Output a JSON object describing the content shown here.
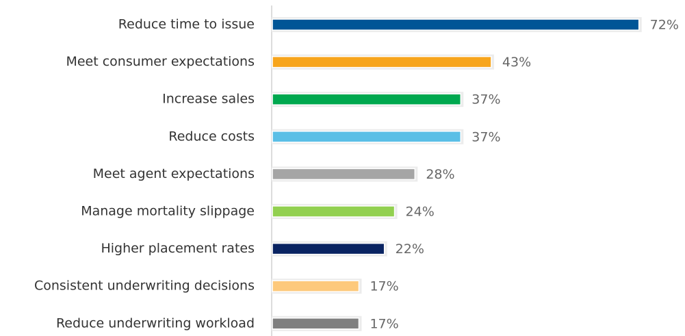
{
  "chart_data": {
    "type": "hbar",
    "categories": [
      "Reduce time to issue",
      "Meet consumer expectations",
      "Increase sales",
      "Reduce costs",
      "Meet agent expectations",
      "Manage mortality slippage",
      "Higher placement rates",
      "Consistent underwriting decisions",
      "Reduce underwriting workload"
    ],
    "values": [
      72,
      43,
      37,
      37,
      28,
      24,
      22,
      17,
      17
    ],
    "value_labels": [
      "72%",
      "43%",
      "37%",
      "37%",
      "28%",
      "24%",
      "22%",
      "17%",
      "17%"
    ],
    "colors": [
      "#005596",
      "#f7a51c",
      "#00a84f",
      "#5bbfe6",
      "#a5a5a5",
      "#92d050",
      "#0a2462",
      "#fdc97c",
      "#7f7f7f"
    ]
  }
}
